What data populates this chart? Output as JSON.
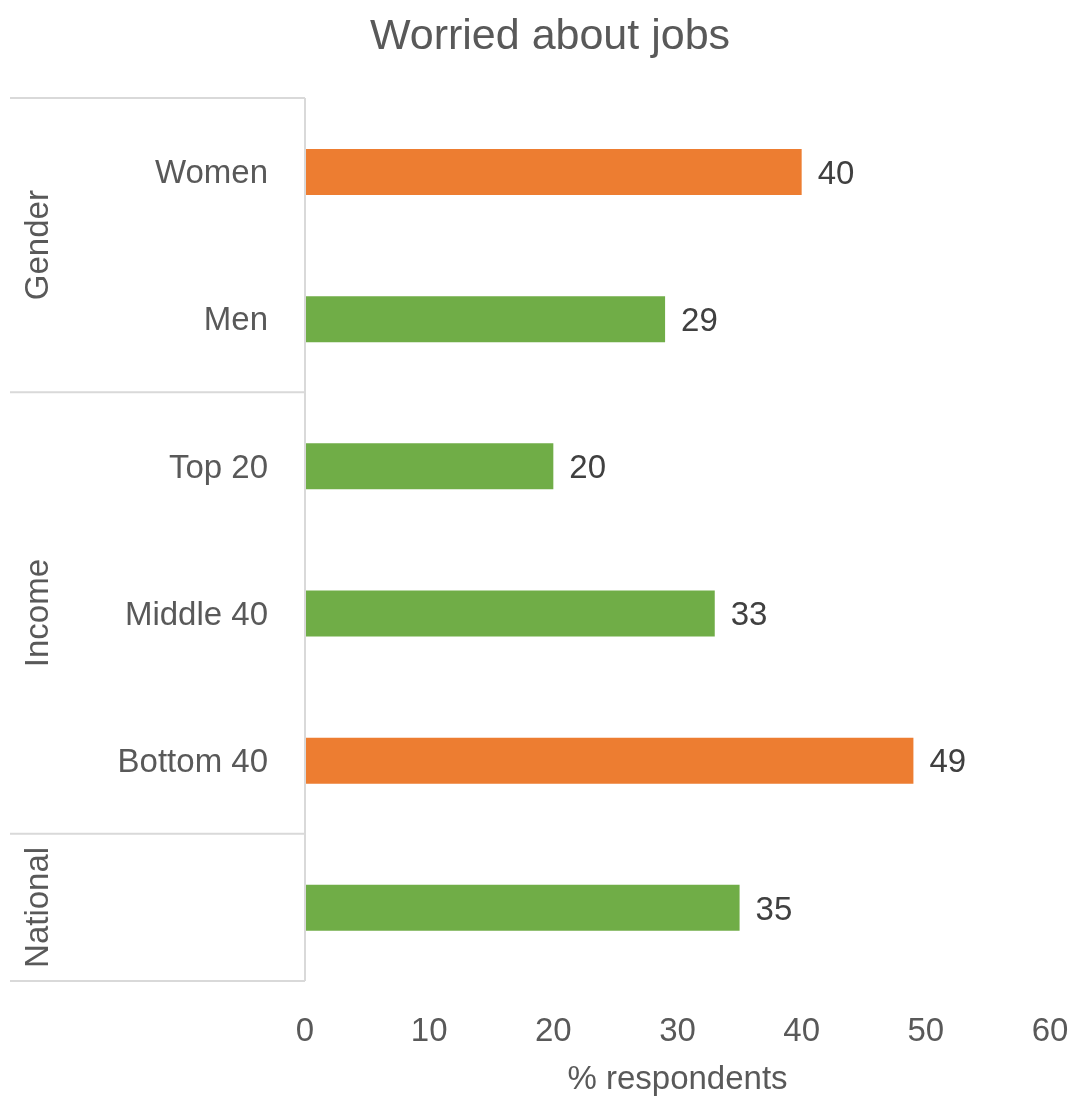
{
  "chart_data": {
    "type": "bar",
    "orientation": "horizontal",
    "title": "Worried about jobs",
    "xlabel": "% respondents",
    "categories": [
      "Women",
      "Men",
      "Top 20",
      "Middle 40",
      "Bottom 40",
      null
    ],
    "values": [
      40,
      29,
      20,
      33,
      49,
      35
    ],
    "colors": [
      "#ed7d31",
      "#70ad47",
      "#70ad47",
      "#70ad47",
      "#ed7d31",
      "#70ad47"
    ],
    "xlim": [
      0,
      60
    ],
    "xticks": [
      0,
      10,
      20,
      30,
      40,
      50,
      60
    ],
    "data_labels": true,
    "annotations": [
      "Gender",
      "Income",
      "National"
    ]
  }
}
